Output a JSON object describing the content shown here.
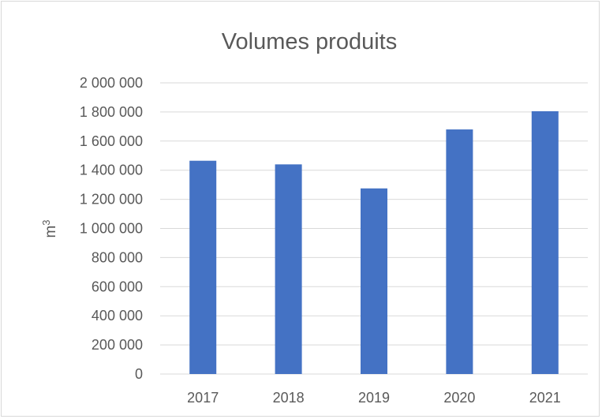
{
  "chart_data": {
    "type": "bar",
    "title": "Volumes produits",
    "xlabel": "",
    "ylabel": "m",
    "ylabel_superscript": "3",
    "categories": [
      "2017",
      "2018",
      "2019",
      "2020",
      "2021"
    ],
    "values": [
      1465000,
      1440000,
      1275000,
      1680000,
      1805000
    ],
    "ylim": [
      0,
      2000000
    ],
    "yticks": [
      0,
      200000,
      400000,
      600000,
      800000,
      1000000,
      1200000,
      1400000,
      1600000,
      1800000,
      2000000
    ],
    "ytick_labels": [
      "0",
      "200 000",
      "400 000",
      "600 000",
      "800 000",
      "1 000 000",
      "1 200 000",
      "1 400 000",
      "1 600 000",
      "1 800 000",
      "2 000 000"
    ],
    "grid": true,
    "legend": "none",
    "bar_color": "#4472c4",
    "grid_color": "#d9d9d9",
    "text_color": "#595959"
  }
}
